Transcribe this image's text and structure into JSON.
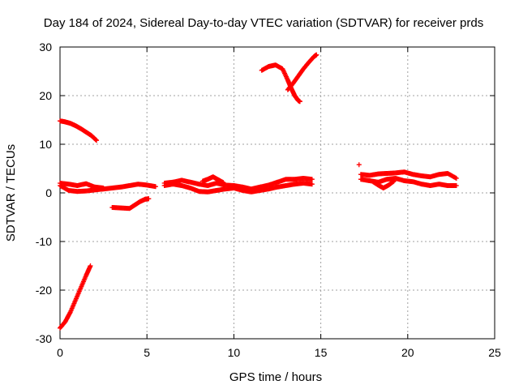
{
  "chart_data": {
    "type": "scatter",
    "title": "Day 184 of 2024, Sidereal Day-to-day VTEC variation (SDTVAR) for receiver prds",
    "xlabel": "GPS time / hours",
    "ylabel": "SDTVAR / TECUs",
    "xlim": [
      0,
      25
    ],
    "ylim": [
      -30,
      30
    ],
    "xticks": [
      0,
      5,
      10,
      15,
      20,
      25
    ],
    "yticks": [
      -30,
      -20,
      -10,
      0,
      10,
      20,
      30
    ],
    "grid": true,
    "marker": "+",
    "color": "#ff0000",
    "series": [
      {
        "name": "arc-neg-rise",
        "points": [
          [
            0.0,
            -27.8
          ],
          [
            0.3,
            -26.5
          ],
          [
            0.6,
            -24.5
          ],
          [
            0.9,
            -22.0
          ],
          [
            1.2,
            -19.5
          ],
          [
            1.5,
            -17.0
          ],
          [
            1.75,
            -15.0
          ]
        ]
      },
      {
        "name": "arc-high-decay",
        "points": [
          [
            0.0,
            14.8
          ],
          [
            0.3,
            14.6
          ],
          [
            0.6,
            14.3
          ],
          [
            0.9,
            13.8
          ],
          [
            1.2,
            13.2
          ],
          [
            1.5,
            12.5
          ],
          [
            1.8,
            11.8
          ],
          [
            2.1,
            10.8
          ]
        ]
      },
      {
        "name": "arc-main-lower",
        "points": [
          [
            0.0,
            1.5
          ],
          [
            0.5,
            0.5
          ],
          [
            1.0,
            0.3
          ],
          [
            1.5,
            0.4
          ],
          [
            2.0,
            0.6
          ],
          [
            2.5,
            0.8
          ],
          [
            3.0,
            1.0
          ],
          [
            3.5,
            1.2
          ],
          [
            4.0,
            1.5
          ],
          [
            4.5,
            1.8
          ],
          [
            5.0,
            1.6
          ],
          [
            5.5,
            1.3
          ]
        ]
      },
      {
        "name": "arc-main-upper",
        "points": [
          [
            0.0,
            2.0
          ],
          [
            0.5,
            1.8
          ],
          [
            1.0,
            1.5
          ],
          [
            1.5,
            1.9
          ],
          [
            2.0,
            1.2
          ],
          [
            2.5,
            1.0
          ]
        ]
      },
      {
        "name": "arc-neg-small",
        "points": [
          [
            3.0,
            -3.0
          ],
          [
            3.5,
            -3.1
          ],
          [
            4.0,
            -3.2
          ],
          [
            4.3,
            -2.5
          ],
          [
            4.6,
            -1.8
          ],
          [
            4.9,
            -1.3
          ],
          [
            5.1,
            -1.2
          ]
        ]
      },
      {
        "name": "arc-mid-upper",
        "points": [
          [
            6.0,
            2.0
          ],
          [
            6.5,
            2.2
          ],
          [
            7.0,
            2.6
          ],
          [
            7.5,
            2.2
          ],
          [
            8.0,
            1.8
          ],
          [
            8.5,
            1.5
          ],
          [
            9.0,
            2.0
          ],
          [
            9.5,
            1.6
          ],
          [
            10.0,
            1.5
          ],
          [
            10.5,
            1.2
          ],
          [
            11.0,
            0.8
          ],
          [
            11.5,
            1.2
          ],
          [
            12.0,
            1.6
          ],
          [
            12.5,
            2.2
          ],
          [
            13.0,
            2.8
          ],
          [
            13.5,
            2.8
          ],
          [
            14.0,
            3.0
          ],
          [
            14.5,
            2.8
          ]
        ]
      },
      {
        "name": "arc-mid-lower",
        "points": [
          [
            6.0,
            1.5
          ],
          [
            6.5,
            1.8
          ],
          [
            7.0,
            1.5
          ],
          [
            7.5,
            1.0
          ],
          [
            8.0,
            0.3
          ],
          [
            8.5,
            0.2
          ],
          [
            9.0,
            0.5
          ],
          [
            9.5,
            0.8
          ],
          [
            10.0,
            1.0
          ],
          [
            10.5,
            0.5
          ],
          [
            11.0,
            0.2
          ],
          [
            11.5,
            0.5
          ],
          [
            12.0,
            0.8
          ],
          [
            12.5,
            1.2
          ],
          [
            13.0,
            1.5
          ],
          [
            13.5,
            1.8
          ],
          [
            14.0,
            2.0
          ],
          [
            14.5,
            1.8
          ]
        ]
      },
      {
        "name": "arc-mid-bump",
        "points": [
          [
            8.2,
            2.4
          ],
          [
            8.5,
            2.8
          ],
          [
            8.8,
            3.3
          ],
          [
            9.1,
            2.7
          ],
          [
            9.4,
            2.1
          ]
        ]
      },
      {
        "name": "arc-v-left",
        "points": [
          [
            11.6,
            25.2
          ],
          [
            12.0,
            26.0
          ],
          [
            12.4,
            26.3
          ],
          [
            12.8,
            25.5
          ],
          [
            13.1,
            23.2
          ],
          [
            13.3,
            21.5
          ],
          [
            13.5,
            20.0
          ],
          [
            13.7,
            19.0
          ],
          [
            13.8,
            18.8
          ]
        ]
      },
      {
        "name": "arc-v-right",
        "points": [
          [
            13.1,
            21.2
          ],
          [
            13.4,
            22.5
          ],
          [
            13.7,
            24.0
          ],
          [
            14.0,
            25.5
          ],
          [
            14.3,
            26.8
          ],
          [
            14.6,
            28.0
          ],
          [
            14.75,
            28.4
          ]
        ]
      },
      {
        "name": "arc-late-upper",
        "points": [
          [
            17.3,
            3.8
          ],
          [
            17.8,
            3.6
          ],
          [
            18.3,
            3.9
          ],
          [
            18.8,
            4.0
          ],
          [
            19.3,
            4.1
          ],
          [
            19.8,
            4.3
          ],
          [
            20.3,
            3.8
          ],
          [
            20.8,
            3.5
          ],
          [
            21.3,
            3.3
          ],
          [
            21.8,
            3.8
          ],
          [
            22.3,
            4.0
          ],
          [
            22.8,
            3.0
          ]
        ]
      },
      {
        "name": "arc-late-lower",
        "points": [
          [
            17.3,
            2.8
          ],
          [
            17.8,
            2.5
          ],
          [
            18.3,
            2.2
          ],
          [
            18.8,
            2.8
          ],
          [
            19.3,
            3.0
          ],
          [
            19.8,
            2.5
          ],
          [
            20.3,
            2.3
          ],
          [
            20.8,
            1.8
          ],
          [
            21.3,
            1.5
          ],
          [
            21.8,
            1.8
          ],
          [
            22.3,
            1.5
          ],
          [
            22.8,
            1.5
          ]
        ]
      },
      {
        "name": "arc-late-dip",
        "points": [
          [
            18.0,
            2.3
          ],
          [
            18.3,
            1.6
          ],
          [
            18.6,
            1.0
          ],
          [
            18.9,
            1.6
          ],
          [
            19.2,
            2.4
          ]
        ]
      },
      {
        "name": "isolated-point",
        "points": [
          [
            17.2,
            5.8
          ]
        ]
      }
    ]
  }
}
